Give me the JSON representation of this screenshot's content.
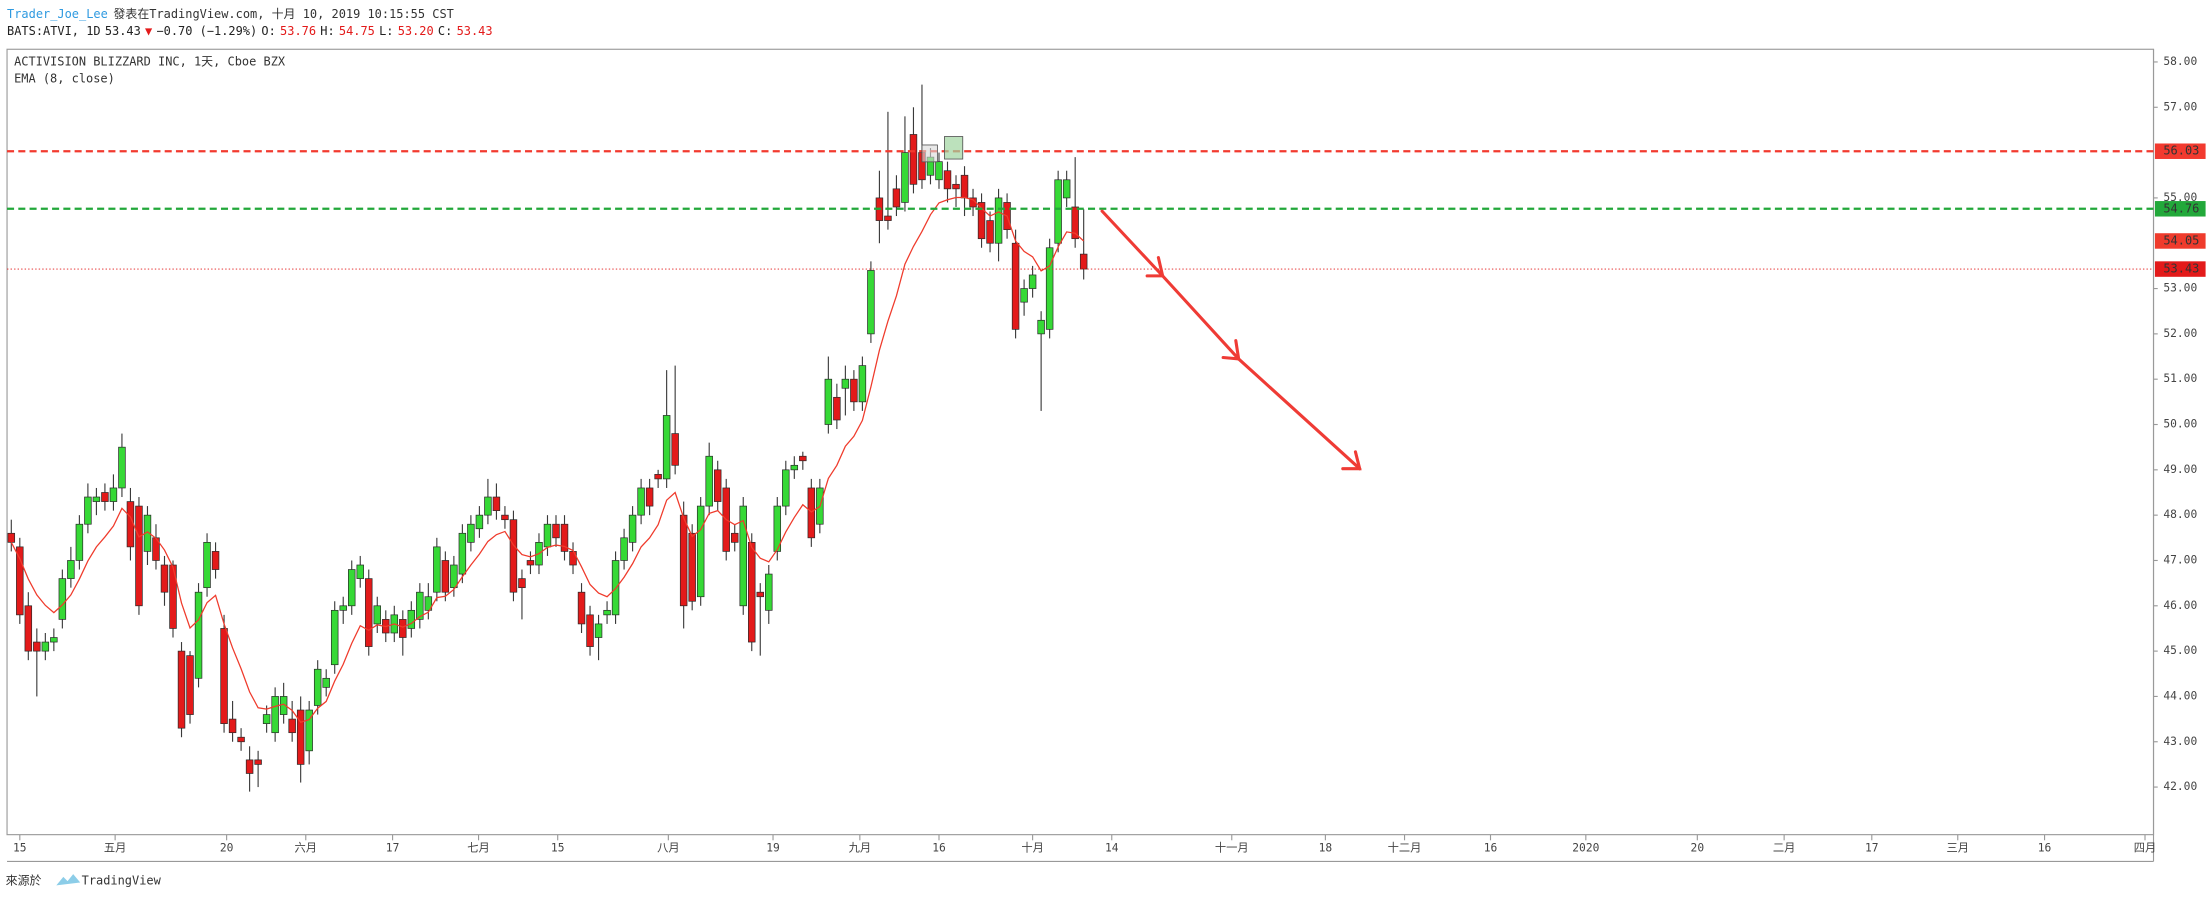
{
  "header": {
    "author": "Trader_Joe_Lee",
    "published": "發表在TradingView.com, 十月 10, 2019 10:15:55 CST",
    "quote": [
      {
        "text": "BATS:ATVI, 1D",
        "color": "#222"
      },
      {
        "text": "53.43",
        "color": "#222"
      },
      {
        "text": "▼",
        "color": "#e31a1a"
      },
      {
        "text": "−0.70 (−1.29%)",
        "color": "#222"
      },
      {
        "text": "O:",
        "color": "#222"
      },
      {
        "text": "53.76",
        "color": "#e31a1a"
      },
      {
        "text": "H:",
        "color": "#222"
      },
      {
        "text": "54.75",
        "color": "#e31a1a"
      },
      {
        "text": "L:",
        "color": "#222"
      },
      {
        "text": "53.20",
        "color": "#e31a1a"
      },
      {
        "text": "C:",
        "color": "#222"
      },
      {
        "text": "53.43",
        "color": "#e31a1a"
      }
    ]
  },
  "footer": {
    "source": "來源於",
    "brand": "TradingView"
  },
  "chart_data": {
    "type": "candlestick",
    "title": "ACTIVISION BLIZZARD INC, 1天, Cboe BZX",
    "up_color": "#36d936",
    "down_color": "#e31a1a",
    "candles": [
      [
        47.6,
        47.9,
        47.2,
        47.4
      ],
      [
        47.3,
        47.5,
        45.6,
        45.8
      ],
      [
        46.0,
        46.3,
        44.8,
        45.0
      ],
      [
        45.2,
        45.5,
        44.0,
        45.0
      ],
      [
        45.0,
        45.4,
        44.8,
        45.2
      ],
      [
        45.2,
        45.5,
        45.0,
        45.3
      ],
      [
        45.7,
        46.8,
        45.5,
        46.6
      ],
      [
        46.6,
        47.3,
        46.4,
        47.0
      ],
      [
        47.0,
        48.0,
        46.8,
        47.8
      ],
      [
        47.8,
        48.7,
        47.6,
        48.4
      ],
      [
        48.3,
        48.6,
        48.0,
        48.4
      ],
      [
        48.5,
        48.7,
        48.1,
        48.3
      ],
      [
        48.3,
        48.9,
        48.1,
        48.6
      ],
      [
        48.6,
        49.8,
        48.4,
        49.5
      ],
      [
        48.3,
        48.6,
        47.0,
        47.3
      ],
      [
        48.2,
        48.4,
        45.8,
        46.0
      ],
      [
        47.2,
        48.2,
        46.9,
        48.0
      ],
      [
        47.5,
        47.8,
        46.8,
        47.0
      ],
      [
        46.9,
        47.1,
        46.0,
        46.3
      ],
      [
        46.9,
        47.0,
        45.3,
        45.5
      ],
      [
        45.0,
        45.2,
        43.1,
        43.3
      ],
      [
        44.9,
        45.0,
        43.4,
        43.6
      ],
      [
        44.4,
        46.5,
        44.2,
        46.3
      ],
      [
        46.4,
        47.6,
        46.2,
        47.4
      ],
      [
        47.2,
        47.4,
        46.6,
        46.8
      ],
      [
        45.5,
        45.8,
        43.2,
        43.4
      ],
      [
        43.5,
        43.9,
        43.0,
        43.2
      ],
      [
        43.1,
        43.3,
        42.8,
        43.0
      ],
      [
        42.6,
        42.9,
        41.9,
        42.3
      ],
      [
        42.6,
        42.8,
        42.0,
        42.5
      ],
      [
        43.4,
        43.8,
        43.2,
        43.6
      ],
      [
        43.2,
        44.2,
        43.0,
        44.0
      ],
      [
        43.6,
        44.3,
        43.4,
        44.0
      ],
      [
        43.5,
        43.9,
        43.0,
        43.2
      ],
      [
        43.7,
        44.0,
        42.1,
        42.5
      ],
      [
        42.8,
        43.9,
        42.5,
        43.7
      ],
      [
        43.8,
        44.8,
        43.6,
        44.6
      ],
      [
        44.2,
        44.6,
        44.0,
        44.4
      ],
      [
        44.7,
        46.1,
        44.5,
        45.9
      ],
      [
        45.9,
        46.2,
        45.6,
        46.0
      ],
      [
        46.0,
        47.0,
        45.8,
        46.8
      ],
      [
        46.6,
        47.1,
        46.4,
        46.9
      ],
      [
        46.6,
        46.8,
        44.9,
        45.1
      ],
      [
        45.6,
        46.2,
        45.4,
        46.0
      ],
      [
        45.7,
        45.9,
        45.2,
        45.4
      ],
      [
        45.4,
        46.0,
        45.2,
        45.8
      ],
      [
        45.7,
        45.9,
        44.9,
        45.3
      ],
      [
        45.5,
        46.1,
        45.3,
        45.9
      ],
      [
        45.7,
        46.5,
        45.5,
        46.3
      ],
      [
        45.9,
        46.5,
        45.7,
        46.2
      ],
      [
        46.3,
        47.5,
        46.1,
        47.3
      ],
      [
        47.0,
        47.2,
        46.1,
        46.3
      ],
      [
        46.4,
        47.1,
        46.2,
        46.9
      ],
      [
        46.7,
        47.8,
        46.5,
        47.6
      ],
      [
        47.4,
        48.0,
        47.2,
        47.8
      ],
      [
        47.7,
        48.2,
        47.5,
        48.0
      ],
      [
        48.0,
        48.8,
        47.8,
        48.4
      ],
      [
        48.4,
        48.7,
        47.9,
        48.1
      ],
      [
        48.0,
        48.2,
        47.7,
        47.9
      ],
      [
        47.9,
        48.1,
        46.1,
        46.3
      ],
      [
        46.6,
        46.8,
        45.7,
        46.4
      ],
      [
        47.0,
        47.2,
        46.7,
        46.9
      ],
      [
        46.9,
        47.6,
        46.7,
        47.4
      ],
      [
        47.3,
        48.0,
        47.1,
        47.8
      ],
      [
        47.8,
        48.0,
        47.3,
        47.5
      ],
      [
        47.8,
        48.0,
        47.0,
        47.2
      ],
      [
        47.2,
        47.4,
        46.7,
        46.9
      ],
      [
        46.3,
        46.5,
        45.4,
        45.6
      ],
      [
        45.8,
        46.0,
        44.9,
        45.1
      ],
      [
        45.3,
        45.8,
        44.8,
        45.6
      ],
      [
        45.8,
        46.1,
        45.6,
        45.9
      ],
      [
        45.8,
        47.2,
        45.6,
        47.0
      ],
      [
        47.0,
        47.7,
        46.8,
        47.5
      ],
      [
        47.4,
        48.2,
        47.2,
        48.0
      ],
      [
        48.0,
        48.8,
        47.8,
        48.6
      ],
      [
        48.6,
        48.8,
        48.0,
        48.2
      ],
      [
        48.9,
        49.0,
        48.6,
        48.8
      ],
      [
        48.8,
        51.2,
        48.6,
        50.2
      ],
      [
        49.8,
        51.3,
        48.9,
        49.1
      ],
      [
        48.0,
        48.3,
        45.5,
        46.0
      ],
      [
        47.6,
        47.8,
        45.9,
        46.1
      ],
      [
        46.2,
        48.4,
        46.0,
        48.2
      ],
      [
        48.2,
        49.6,
        48.0,
        49.3
      ],
      [
        49.0,
        49.2,
        48.1,
        48.3
      ],
      [
        48.6,
        48.8,
        47.0,
        47.2
      ],
      [
        47.6,
        47.8,
        47.2,
        47.4
      ],
      [
        46.0,
        48.4,
        45.8,
        48.2
      ],
      [
        47.4,
        47.6,
        45.0,
        45.2
      ],
      [
        46.3,
        46.5,
        44.9,
        46.2
      ],
      [
        45.9,
        46.9,
        45.6,
        46.7
      ],
      [
        47.2,
        48.4,
        47.0,
        48.2
      ],
      [
        48.2,
        49.2,
        48.0,
        49.0
      ],
      [
        49.0,
        49.3,
        48.8,
        49.1
      ],
      [
        49.3,
        49.4,
        49.0,
        49.2
      ],
      [
        48.6,
        48.8,
        47.3,
        47.5
      ],
      [
        47.8,
        48.8,
        47.6,
        48.6
      ],
      [
        50.0,
        51.5,
        49.8,
        51.0
      ],
      [
        50.6,
        50.9,
        49.9,
        50.1
      ],
      [
        50.8,
        51.3,
        50.2,
        51.0
      ],
      [
        51.0,
        51.2,
        50.3,
        50.5
      ],
      [
        50.5,
        51.5,
        50.3,
        51.3
      ],
      [
        52.0,
        53.6,
        51.8,
        53.4
      ],
      [
        55.0,
        55.6,
        54.0,
        54.5
      ],
      [
        54.6,
        56.9,
        54.3,
        54.5
      ],
      [
        55.2,
        55.5,
        54.6,
        54.8
      ],
      [
        54.9,
        56.8,
        54.7,
        56.0
      ],
      [
        56.4,
        57.0,
        55.1,
        55.3
      ],
      [
        56.0,
        57.5,
        55.2,
        55.4
      ],
      [
        55.5,
        56.1,
        55.3,
        55.9
      ],
      [
        55.4,
        56.0,
        55.2,
        55.8
      ],
      [
        55.6,
        55.8,
        54.9,
        55.2
      ],
      [
        55.3,
        55.5,
        54.8,
        55.2
      ],
      [
        55.5,
        55.7,
        54.6,
        55.0
      ],
      [
        55.0,
        55.2,
        54.6,
        54.8
      ],
      [
        54.9,
        55.1,
        53.9,
        54.1
      ],
      [
        54.5,
        54.7,
        53.8,
        54.0
      ],
      [
        54.0,
        55.2,
        53.6,
        55.0
      ],
      [
        54.9,
        55.1,
        54.1,
        54.3
      ],
      [
        54.0,
        54.3,
        51.9,
        52.1
      ],
      [
        52.7,
        53.2,
        52.4,
        53.0
      ],
      [
        53.0,
        53.5,
        52.8,
        53.3
      ],
      [
        52.0,
        52.5,
        50.3,
        52.3
      ],
      [
        52.1,
        54.1,
        51.9,
        53.9
      ],
      [
        54.0,
        55.6,
        53.8,
        55.4
      ],
      [
        55.0,
        55.6,
        54.8,
        55.4
      ],
      [
        54.8,
        55.9,
        53.9,
        54.1
      ],
      [
        53.76,
        54.75,
        53.2,
        53.43
      ]
    ],
    "ema_name": "EMA (8, close)",
    "ema_color": "#ef3b2c",
    "ema": [
      47.4,
      47.04,
      46.59,
      46.24,
      46.01,
      45.85,
      46.02,
      46.24,
      46.59,
      46.99,
      47.3,
      47.52,
      47.76,
      48.15,
      47.96,
      47.52,
      47.63,
      47.49,
      47.23,
      46.85,
      46.06,
      45.51,
      45.69,
      46.07,
      46.23,
      45.6,
      45.07,
      44.61,
      44.1,
      43.75,
      43.72,
      43.78,
      43.83,
      43.69,
      43.43,
      43.49,
      43.74,
      43.89,
      44.34,
      44.71,
      45.17,
      45.56,
      45.46,
      45.58,
      45.54,
      45.6,
      45.53,
      45.61,
      45.76,
      45.86,
      46.18,
      46.21,
      46.36,
      46.64,
      46.9,
      47.14,
      47.42,
      47.57,
      47.64,
      47.34,
      47.13,
      47.08,
      47.15,
      47.29,
      47.34,
      47.31,
      47.22,
      46.86,
      46.47,
      46.28,
      46.2,
      46.38,
      46.63,
      46.93,
      47.3,
      47.5,
      47.79,
      48.33,
      48.5,
      47.94,
      47.53,
      47.68,
      48.04,
      48.1,
      47.9,
      47.79,
      47.88,
      47.29,
      47.05,
      46.97,
      47.24,
      47.63,
      47.95,
      48.23,
      48.07,
      48.19,
      48.81,
      49.1,
      49.52,
      49.74,
      50.09,
      50.83,
      51.64,
      52.28,
      52.84,
      53.54,
      53.93,
      54.26,
      54.63,
      54.89,
      54.96,
      55.01,
      55.01,
      54.96,
      54.77,
      54.6,
      54.69,
      54.6,
      54.05,
      53.82,
      53.7,
      53.39,
      53.5,
      53.92,
      54.25,
      54.22,
      54.05
    ],
    "price_lines": [
      {
        "value": 56.03,
        "color": "#f23a2f"
      },
      {
        "value": 54.76,
        "color": "#22a83a"
      }
    ],
    "last_price_color": "#e31a1a",
    "ylim": [
      40.95,
      58.28
    ],
    "yticks": [
      {
        "value": 42,
        "label": "42.00"
      },
      {
        "value": 43,
        "label": "43.00"
      },
      {
        "value": 44,
        "label": "44.00"
      },
      {
        "value": 45,
        "label": "45.00"
      },
      {
        "value": 46,
        "label": "46.00"
      },
      {
        "value": 47,
        "label": "47.00"
      },
      {
        "value": 48,
        "label": "48.00"
      },
      {
        "value": 49,
        "label": "49.00"
      },
      {
        "value": 50,
        "label": "50.00"
      },
      {
        "value": 51,
        "label": "51.00"
      },
      {
        "value": 52,
        "label": "52.00"
      },
      {
        "value": 53,
        "label": "53.00"
      },
      {
        "value": 55,
        "label": "55.00"
      },
      {
        "value": 57,
        "label": "57.00"
      },
      {
        "value": 58,
        "label": "58.00"
      }
    ],
    "xlim": [
      -0.5,
      251.7
    ],
    "xticks": [
      {
        "value": 1.0,
        "label": "15"
      },
      {
        "value": 12.2,
        "label": "五月"
      },
      {
        "value": 25.3,
        "label": "20"
      },
      {
        "value": 34.6,
        "label": "六月"
      },
      {
        "value": 44.8,
        "label": "17"
      },
      {
        "value": 54.9,
        "label": "七月"
      },
      {
        "value": 64.2,
        "label": "15"
      },
      {
        "value": 77.2,
        "label": "八月"
      },
      {
        "value": 89.5,
        "label": "19"
      },
      {
        "value": 99.7,
        "label": "九月"
      },
      {
        "value": 109.0,
        "label": "16"
      },
      {
        "value": 120.0,
        "label": "十月"
      },
      {
        "value": 129.3,
        "label": "14"
      },
      {
        "value": 143.4,
        "label": "十一月"
      },
      {
        "value": 154.4,
        "label": "18"
      },
      {
        "value": 163.7,
        "label": "十二月"
      },
      {
        "value": 173.8,
        "label": "16"
      },
      {
        "value": 185.0,
        "label": "2020"
      },
      {
        "value": 198.1,
        "label": "20"
      },
      {
        "value": 208.3,
        "label": "二月"
      },
      {
        "value": 218.6,
        "label": "17"
      },
      {
        "value": 228.7,
        "label": "三月"
      },
      {
        "value": 238.9,
        "label": "16"
      },
      {
        "value": 250.7,
        "label": "四月"
      }
    ]
  }
}
